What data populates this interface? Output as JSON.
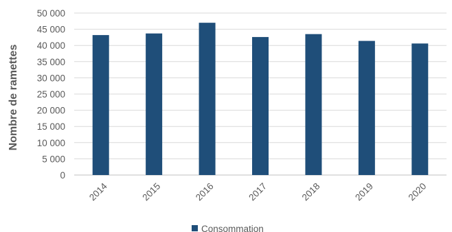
{
  "chart_data": {
    "type": "bar",
    "categories": [
      "2014",
      "2015",
      "2016",
      "2017",
      "2018",
      "2019",
      "2020"
    ],
    "series": [
      {
        "name": "Consommation",
        "values": [
          43200,
          43700,
          47000,
          42600,
          43500,
          41400,
          40600
        ],
        "color": "#1f4e79"
      }
    ],
    "ylabel": "Nombre de ramettes",
    "xlabel": "",
    "ylim": [
      0,
      50000
    ],
    "yticks": [
      0,
      5000,
      10000,
      15000,
      20000,
      25000,
      30000,
      35000,
      40000,
      45000,
      50000
    ],
    "ytick_labels": [
      "0",
      "5 000",
      "10 000",
      "15 000",
      "20 000",
      "25 000",
      "30 000",
      "35 000",
      "40 000",
      "45 000",
      "50 000"
    ],
    "grid": true,
    "legend": "bottom"
  }
}
